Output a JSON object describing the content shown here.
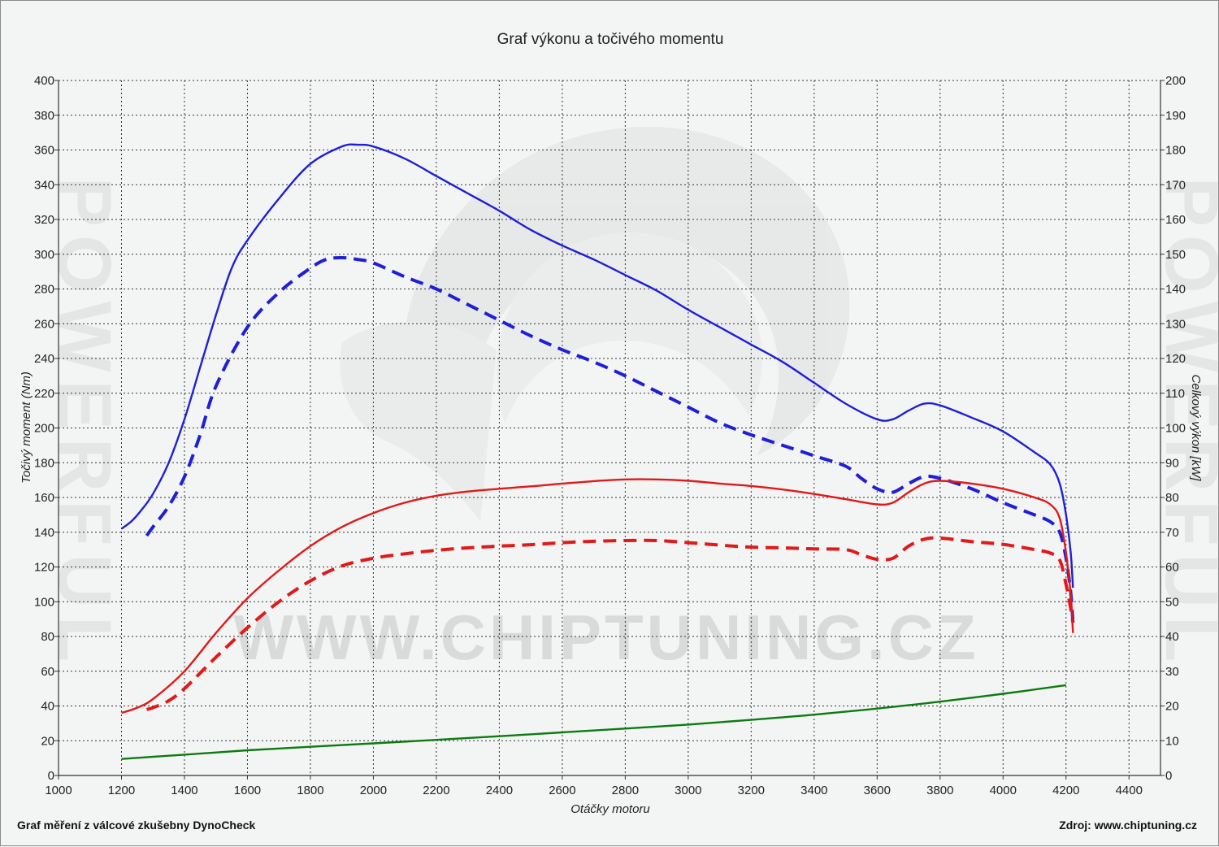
{
  "chart_data": {
    "type": "line",
    "title": "Graf výkonu a točivého momentu",
    "xlabel": "Otáčky motoru",
    "ylabel_left": "Točivý moment (Nm)",
    "ylabel_right": "Celkový výkon [kW]",
    "xlim": [
      1000,
      4500
    ],
    "ylim_left": [
      0,
      400
    ],
    "ylim_right": [
      0,
      200
    ],
    "x_ticks": [
      1000,
      1200,
      1400,
      1600,
      1800,
      2000,
      2200,
      2400,
      2600,
      2800,
      3000,
      3200,
      3400,
      3600,
      3800,
      4000,
      4200,
      4400
    ],
    "y_ticks_left": [
      0,
      20,
      40,
      60,
      80,
      100,
      120,
      140,
      160,
      180,
      200,
      220,
      240,
      260,
      280,
      300,
      320,
      340,
      360,
      380,
      400
    ],
    "y_ticks_right": [
      0,
      10,
      20,
      30,
      40,
      50,
      60,
      70,
      80,
      90,
      100,
      110,
      120,
      130,
      140,
      150,
      160,
      170,
      180,
      190,
      200
    ],
    "grid": true,
    "series": [
      {
        "axis": "left",
        "color": "#1f1fd6",
        "style": "solid",
        "x": [
          1200,
          1230,
          1260,
          1300,
          1350,
          1400,
          1450,
          1500,
          1550,
          1600,
          1700,
          1800,
          1900,
          1950,
          2000,
          2100,
          2200,
          2300,
          2400,
          2500,
          2600,
          2700,
          2800,
          2900,
          3000,
          3100,
          3200,
          3300,
          3400,
          3500,
          3600,
          3650,
          3700,
          3750,
          3800,
          3900,
          4000,
          4100,
          4150,
          4180,
          4200,
          4215,
          4222
        ],
        "y": [
          142,
          146,
          152,
          162,
          180,
          205,
          235,
          265,
          292,
          308,
          332,
          352,
          362,
          363,
          362,
          355,
          345,
          335,
          325,
          314,
          305,
          297,
          288,
          279,
          268,
          258,
          248,
          238,
          226,
          214,
          205,
          205,
          210,
          214,
          213,
          206,
          198,
          186,
          179,
          168,
          150,
          128,
          108
        ]
      },
      {
        "axis": "left",
        "color": "#1f1fd6",
        "style": "dashed",
        "x": [
          1280,
          1300,
          1350,
          1400,
          1450,
          1500,
          1600,
          1700,
          1800,
          1850,
          1900,
          1950,
          2000,
          2100,
          2200,
          2300,
          2400,
          2500,
          2600,
          2700,
          2800,
          2900,
          3000,
          3100,
          3200,
          3300,
          3400,
          3500,
          3550,
          3600,
          3650,
          3700,
          3750,
          3800,
          3900,
          4000,
          4100,
          4150,
          4180,
          4200,
          4215,
          4222
        ],
        "y": [
          138,
          143,
          155,
          172,
          196,
          224,
          258,
          278,
          292,
          297,
          298,
          297,
          295,
          287,
          280,
          271,
          262,
          253,
          245,
          238,
          230,
          221,
          212,
          203,
          196,
          190,
          184,
          178,
          171,
          165,
          163,
          168,
          172,
          171,
          165,
          157,
          150,
          146,
          140,
          125,
          105,
          88
        ]
      },
      {
        "axis": "right",
        "color": "#e11919",
        "style": "solid",
        "x": [
          1200,
          1250,
          1300,
          1400,
          1500,
          1600,
          1700,
          1800,
          1900,
          2000,
          2100,
          2200,
          2300,
          2400,
          2500,
          2600,
          2700,
          2800,
          2900,
          3000,
          3100,
          3200,
          3300,
          3400,
          3500,
          3600,
          3650,
          3700,
          3750,
          3800,
          3900,
          4000,
          4100,
          4150,
          4180,
          4200,
          4215,
          4222
        ],
        "y": [
          18,
          19.5,
          22,
          30,
          41,
          51,
          59,
          66,
          71.5,
          75.5,
          78.5,
          80.5,
          81.7,
          82.5,
          83.2,
          84,
          84.7,
          85.2,
          85.2,
          84.8,
          84,
          83.3,
          82.3,
          81,
          79.5,
          78,
          78.5,
          81.5,
          84,
          84.8,
          84,
          82.5,
          80,
          78,
          74,
          64,
          52,
          41
        ]
      },
      {
        "axis": "right",
        "color": "#e11919",
        "style": "dashed",
        "x": [
          1280,
          1300,
          1350,
          1400,
          1500,
          1600,
          1700,
          1800,
          1900,
          2000,
          2100,
          2200,
          2300,
          2400,
          2500,
          2600,
          2700,
          2800,
          2900,
          3000,
          3100,
          3200,
          3300,
          3400,
          3500,
          3550,
          3600,
          3650,
          3700,
          3750,
          3800,
          3900,
          4000,
          4100,
          4150,
          4180,
          4200,
          4215,
          4222
        ],
        "y": [
          19,
          19.5,
          21.5,
          25,
          34,
          42.5,
          50,
          56,
          60.3,
          62.5,
          63.8,
          64.8,
          65.5,
          66,
          66.4,
          67,
          67.4,
          67.6,
          67.6,
          67,
          66.3,
          65.7,
          65.5,
          65.2,
          65,
          63.5,
          62.2,
          62.5,
          66,
          68,
          68.3,
          67.3,
          66.5,
          65,
          64,
          62,
          55,
          48,
          44
        ]
      },
      {
        "axis": "left",
        "color": "#0d7a12",
        "style": "solid",
        "x": [
          1200,
          1400,
          1600,
          1800,
          2000,
          2200,
          2400,
          2600,
          2800,
          3000,
          3200,
          3400,
          3600,
          3800,
          4000,
          4200
        ],
        "y": [
          9.5,
          12,
          14.5,
          16.5,
          18.5,
          20.5,
          22.6,
          24.8,
          27,
          29.3,
          32,
          35,
          38.5,
          42.5,
          47,
          52
        ]
      }
    ]
  },
  "watermark": {
    "text": "WWW.CHIPTUNING.CZ",
    "side_text": "POWERFUL"
  },
  "footer": {
    "left": "Graf měření z válcové zkušebny DynoCheck",
    "right": "Zdroj: www.chiptuning.cz"
  }
}
